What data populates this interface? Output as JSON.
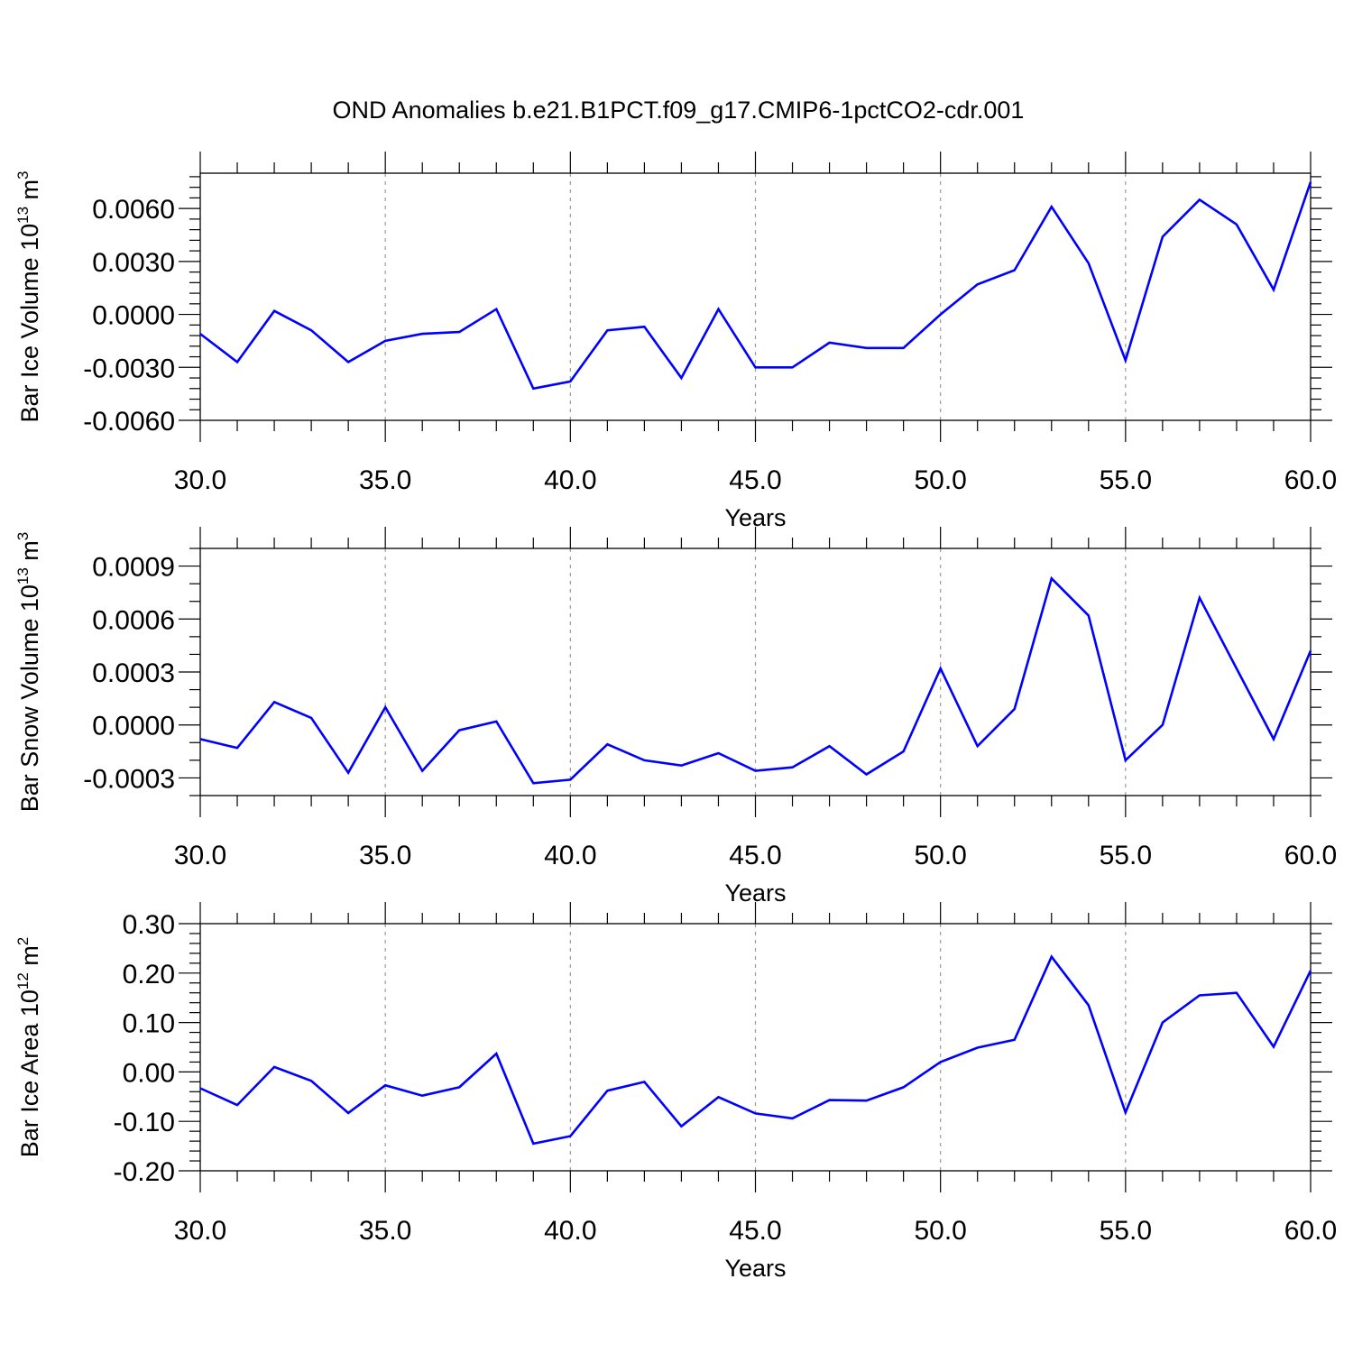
{
  "figure": {
    "title": "OND Anomalies b.e21.B1PCT.f09_g17.CMIP6-1pctCO2-cdr.001"
  },
  "style": {
    "line_color": "#0000ff",
    "axis_color": "#000000",
    "grid_color": "#9a9a9a"
  },
  "chart_data": [
    {
      "type": "line",
      "xlabel": "Years",
      "ylabel": {
        "text": "Bar Ice Volume 10",
        "exp": "13",
        "unit": " m",
        "unit_exp": "3"
      },
      "xlim": [
        30,
        60
      ],
      "ylim": [
        -0.006,
        0.008
      ],
      "x_ticks": [
        30,
        35,
        40,
        45,
        50,
        55,
        60
      ],
      "x_tick_labels": [
        "30.0",
        "35.0",
        "40.0",
        "45.0",
        "50.0",
        "55.0",
        "60.0"
      ],
      "y_ticks": [
        -0.006,
        -0.003,
        0.0,
        0.003,
        0.006
      ],
      "y_tick_labels": [
        "-0.0060",
        "-0.0030",
        "0.0000",
        "0.0030",
        "0.0060"
      ],
      "y_minor_step": 0.0006,
      "grid": "vertical-dashed",
      "series": [
        {
          "x": [
            30,
            31,
            32,
            33,
            34,
            35,
            36,
            37,
            38,
            39,
            40,
            41,
            42,
            43,
            44,
            45,
            46,
            47,
            48,
            49,
            50,
            51,
            52,
            53,
            54,
            55,
            56,
            57,
            58,
            59,
            60
          ],
          "values": [
            -0.0011,
            -0.0027,
            0.0002,
            -0.0009,
            -0.0027,
            -0.0015,
            -0.0011,
            -0.001,
            0.0003,
            -0.0042,
            -0.0038,
            -0.0009,
            -0.0007,
            -0.0036,
            0.0003,
            -0.003,
            -0.003,
            -0.0016,
            -0.0019,
            -0.0019,
            0.0,
            0.0017,
            0.0025,
            0.0061,
            0.0029,
            -0.0026,
            0.0044,
            0.0065,
            0.0051,
            0.0014,
            0.0075
          ]
        }
      ]
    },
    {
      "type": "line",
      "xlabel": "Years",
      "ylabel": {
        "text": "Bar Snow Volume 10",
        "exp": "13",
        "unit": " m",
        "unit_exp": "3"
      },
      "xlim": [
        30,
        60
      ],
      "ylim": [
        -0.0004,
        0.001
      ],
      "x_ticks": [
        30,
        35,
        40,
        45,
        50,
        55,
        60
      ],
      "x_tick_labels": [
        "30.0",
        "35.0",
        "40.0",
        "45.0",
        "50.0",
        "55.0",
        "60.0"
      ],
      "y_ticks": [
        -0.0003,
        0.0,
        0.0003,
        0.0006,
        0.0009
      ],
      "y_tick_labels": [
        "-0.0003",
        "0.0000",
        "0.0003",
        "0.0006",
        "0.0009"
      ],
      "y_minor_step": 0.0001,
      "grid": "vertical-dashed",
      "series": [
        {
          "x": [
            30,
            31,
            32,
            33,
            34,
            35,
            36,
            37,
            38,
            39,
            40,
            41,
            42,
            43,
            44,
            45,
            46,
            47,
            48,
            49,
            50,
            51,
            52,
            53,
            54,
            55,
            56,
            57,
            58,
            59,
            60
          ],
          "values": [
            -8e-05,
            -0.00013,
            0.00013,
            4e-05,
            -0.00027,
            0.0001,
            -0.00026,
            -3e-05,
            2e-05,
            -0.00033,
            -0.00031,
            -0.00011,
            -0.0002,
            -0.00023,
            -0.00016,
            -0.00026,
            -0.00024,
            -0.00012,
            -0.00028,
            -0.00015,
            0.00032,
            -0.00012,
            9e-05,
            0.00083,
            0.00062,
            -0.0002,
            0.0,
            0.00072,
            0.00032,
            -8e-05,
            0.00042
          ]
        }
      ]
    },
    {
      "type": "line",
      "xlabel": "Years",
      "ylabel": {
        "text": "Bar Ice Area 10",
        "exp": "12",
        "unit": " m",
        "unit_exp": "2"
      },
      "xlim": [
        30,
        60
      ],
      "ylim": [
        -0.2,
        0.3
      ],
      "x_ticks": [
        30,
        35,
        40,
        45,
        50,
        55,
        60
      ],
      "x_tick_labels": [
        "30.0",
        "35.0",
        "40.0",
        "45.0",
        "50.0",
        "55.0",
        "60.0"
      ],
      "y_ticks": [
        -0.2,
        -0.1,
        0.0,
        0.1,
        0.2,
        0.3
      ],
      "y_tick_labels": [
        "-0.20",
        "-0.10",
        "0.00",
        "0.10",
        "0.20",
        "0.30"
      ],
      "y_minor_step": 0.02,
      "grid": "vertical-dashed",
      "series": [
        {
          "x": [
            30,
            31,
            32,
            33,
            34,
            35,
            36,
            37,
            38,
            39,
            40,
            41,
            42,
            43,
            44,
            45,
            46,
            47,
            48,
            49,
            50,
            51,
            52,
            53,
            54,
            55,
            56,
            57,
            58,
            59,
            60
          ],
          "values": [
            -0.033,
            -0.067,
            0.01,
            -0.018,
            -0.083,
            -0.027,
            -0.048,
            -0.031,
            0.037,
            -0.145,
            -0.13,
            -0.038,
            -0.02,
            -0.11,
            -0.051,
            -0.084,
            -0.094,
            -0.057,
            -0.058,
            -0.031,
            0.02,
            0.049,
            0.065,
            0.233,
            0.135,
            -0.082,
            0.1,
            0.155,
            0.16,
            0.051,
            0.205
          ]
        }
      ]
    }
  ]
}
